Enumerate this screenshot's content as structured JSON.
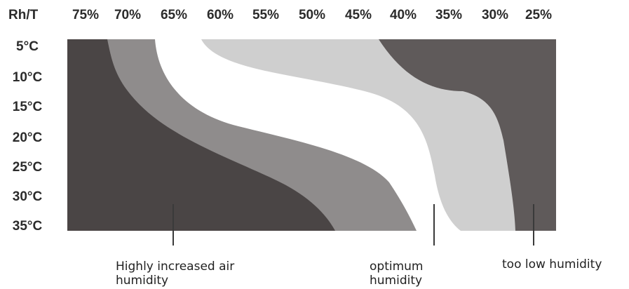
{
  "corner_label": "Rh/T",
  "humidity_ticks": [
    "75%",
    "70%",
    "65%",
    "60%",
    "55%",
    "50%",
    "45%",
    "40%",
    "35%",
    "30%",
    "25%"
  ],
  "temperature_ticks": [
    "5°C",
    "10°C",
    "15°C",
    "20°C",
    "25°C",
    "30°C",
    "35°C"
  ],
  "colors": {
    "dark_zone": "#4a4545",
    "mid_zone": "#8f8c8c",
    "optimum_zone": "#ffffff",
    "light_zone": "#cfcfcf",
    "right_zone": "#5f5a5a"
  },
  "annotations": {
    "high_humidity_line1": "Highly increased air",
    "high_humidity_line2": "humidity",
    "optimum_line1": "optimum",
    "optimum_line2": "humidity",
    "too_low": "too low humidity"
  }
}
